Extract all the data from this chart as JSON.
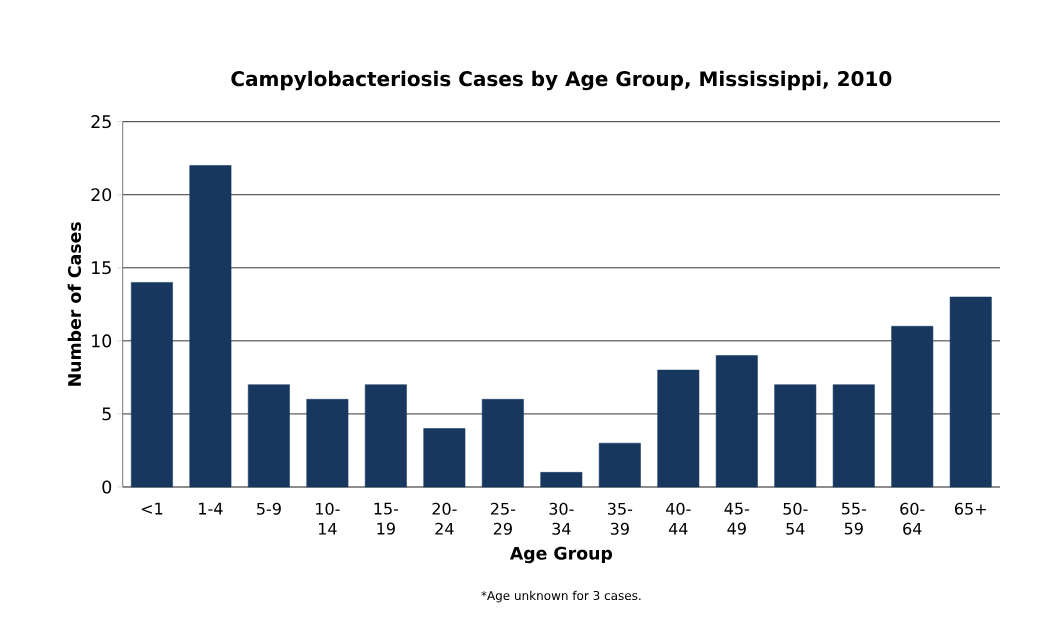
{
  "chart_data": {
    "type": "bar",
    "title": "Campylobacteriosis Cases by Age Group, Mississippi, 2010",
    "xlabel": "Age Group",
    "ylabel": "Number of Cases",
    "categories": [
      "<1",
      "1-4",
      "5-9",
      "10-14",
      "15-19",
      "20-24",
      "25-29",
      "30-34",
      "35-39",
      "40-44",
      "45-49",
      "50-54",
      "55-59",
      "60-64",
      "65+"
    ],
    "values": [
      14,
      22,
      7,
      6,
      7,
      4,
      6,
      1,
      3,
      8,
      9,
      7,
      7,
      11,
      13
    ],
    "color": "#17375e",
    "ylim": [
      0,
      25
    ],
    "yticks": [
      0,
      5,
      10,
      15,
      20,
      25
    ],
    "grid": "y",
    "annotations": [
      "*Age unknown for 3 cases."
    ]
  }
}
